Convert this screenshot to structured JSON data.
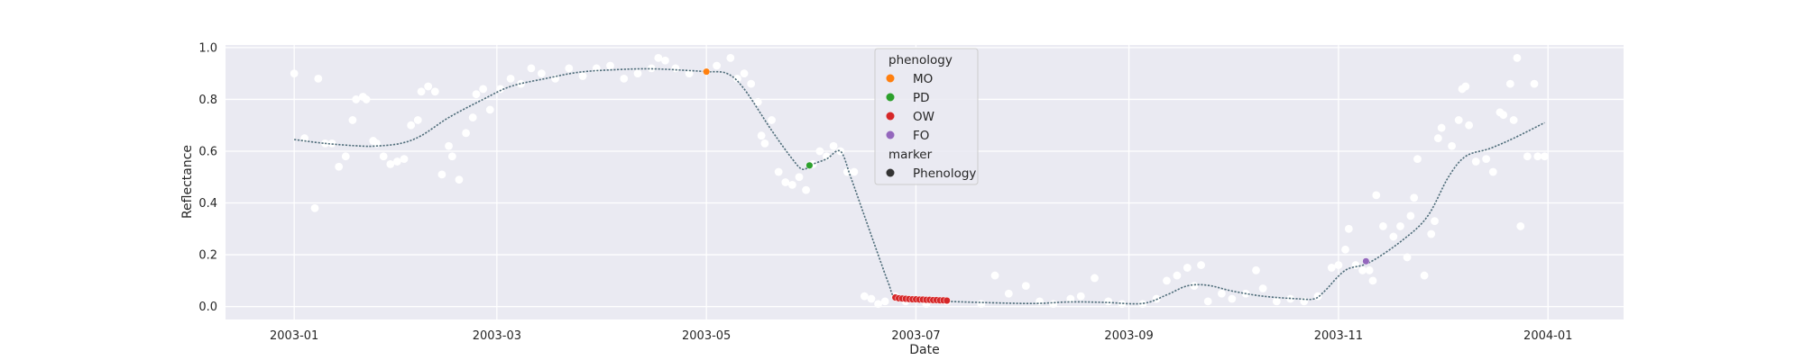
{
  "chart_data": {
    "type": "scatter",
    "title": "",
    "xlabel": "Date",
    "ylabel": "Reflectance",
    "xlim": [
      "2002-12-12",
      "2004-01-23"
    ],
    "ylim": [
      -0.05,
      1.01
    ],
    "x_ticks": [
      "2003-01-01",
      "2003-03-01",
      "2003-05-01",
      "2003-07-01",
      "2003-09-01",
      "2003-11-01",
      "2004-01-01"
    ],
    "x_tick_labels": [
      "2003-01",
      "2003-03",
      "2003-05",
      "2003-07",
      "2003-09",
      "2003-11",
      "2004-01"
    ],
    "y_ticks": [
      0.0,
      0.2,
      0.4,
      0.6,
      0.8,
      1.0
    ],
    "y_tick_labels": [
      "0.0",
      "0.2",
      "0.4",
      "0.6",
      "0.8",
      "1.0"
    ],
    "grid": true,
    "background": "#eaeaf2",
    "legend": {
      "placement": "upper-center",
      "title_hue": "phenology",
      "title_marker": "marker",
      "entries": [
        {
          "label": "MO",
          "color": "#ff7f0e"
        },
        {
          "label": "PD",
          "color": "#2ca02c"
        },
        {
          "label": "OW",
          "color": "#d62728"
        },
        {
          "label": "FO",
          "color": "#9467bd"
        }
      ],
      "marker_entries": [
        {
          "label": "Phenology",
          "color": "#333333"
        }
      ]
    },
    "observations": {
      "color": "#ffffff",
      "points": [
        [
          "2003-01-01",
          0.9
        ],
        [
          "2003-01-04",
          0.65
        ],
        [
          "2003-01-07",
          0.38
        ],
        [
          "2003-01-08",
          0.88
        ],
        [
          "2003-01-10",
          0.63
        ],
        [
          "2003-01-12",
          0.63
        ],
        [
          "2003-01-14",
          0.54
        ],
        [
          "2003-01-16",
          0.58
        ],
        [
          "2003-01-18",
          0.72
        ],
        [
          "2003-01-19",
          0.8
        ],
        [
          "2003-01-21",
          0.81
        ],
        [
          "2003-01-22",
          0.8
        ],
        [
          "2003-01-24",
          0.64
        ],
        [
          "2003-01-25",
          0.63
        ],
        [
          "2003-01-27",
          0.58
        ],
        [
          "2003-01-29",
          0.55
        ],
        [
          "2003-01-31",
          0.56
        ],
        [
          "2003-02-02",
          0.57
        ],
        [
          "2003-02-04",
          0.7
        ],
        [
          "2003-02-06",
          0.72
        ],
        [
          "2003-02-07",
          0.83
        ],
        [
          "2003-02-09",
          0.85
        ],
        [
          "2003-02-11",
          0.83
        ],
        [
          "2003-02-13",
          0.51
        ],
        [
          "2003-02-15",
          0.62
        ],
        [
          "2003-02-16",
          0.58
        ],
        [
          "2003-02-18",
          0.49
        ],
        [
          "2003-02-20",
          0.67
        ],
        [
          "2003-02-22",
          0.73
        ],
        [
          "2003-02-23",
          0.82
        ],
        [
          "2003-02-25",
          0.84
        ],
        [
          "2003-02-27",
          0.76
        ],
        [
          "2003-03-02",
          0.84
        ],
        [
          "2003-03-05",
          0.88
        ],
        [
          "2003-03-08",
          0.86
        ],
        [
          "2003-03-11",
          0.92
        ],
        [
          "2003-03-14",
          0.9
        ],
        [
          "2003-03-18",
          0.88
        ],
        [
          "2003-03-22",
          0.92
        ],
        [
          "2003-03-26",
          0.89
        ],
        [
          "2003-03-30",
          0.92
        ],
        [
          "2003-04-03",
          0.93
        ],
        [
          "2003-04-07",
          0.88
        ],
        [
          "2003-04-11",
          0.9
        ],
        [
          "2003-04-15",
          0.92
        ],
        [
          "2003-04-17",
          0.96
        ],
        [
          "2003-04-19",
          0.95
        ],
        [
          "2003-04-22",
          0.92
        ],
        [
          "2003-04-26",
          0.9
        ],
        [
          "2003-05-04",
          0.93
        ],
        [
          "2003-05-08",
          0.96
        ],
        [
          "2003-05-10",
          0.88
        ],
        [
          "2003-05-12",
          0.9
        ],
        [
          "2003-05-14",
          0.86
        ],
        [
          "2003-05-16",
          0.79
        ],
        [
          "2003-05-17",
          0.66
        ],
        [
          "2003-05-18",
          0.63
        ],
        [
          "2003-05-20",
          0.72
        ],
        [
          "2003-05-22",
          0.52
        ],
        [
          "2003-05-24",
          0.48
        ],
        [
          "2003-05-26",
          0.47
        ],
        [
          "2003-05-28",
          0.5
        ],
        [
          "2003-05-30",
          0.45
        ],
        [
          "2003-06-01",
          0.55
        ],
        [
          "2003-06-03",
          0.6
        ],
        [
          "2003-06-05",
          0.58
        ],
        [
          "2003-06-07",
          0.62
        ],
        [
          "2003-06-09",
          0.6
        ],
        [
          "2003-06-11",
          0.52
        ],
        [
          "2003-06-13",
          0.52
        ],
        [
          "2003-06-16",
          0.04
        ],
        [
          "2003-06-18",
          0.03
        ],
        [
          "2003-06-20",
          0.01
        ],
        [
          "2003-06-22",
          0.02
        ],
        [
          "2003-06-25",
          0.04
        ],
        [
          "2003-06-28",
          0.02
        ],
        [
          "2003-07-04",
          0.01
        ],
        [
          "2003-07-10",
          0.02
        ],
        [
          "2003-07-20",
          0.01
        ],
        [
          "2003-07-24",
          0.12
        ],
        [
          "2003-07-28",
          0.05
        ],
        [
          "2003-08-02",
          0.08
        ],
        [
          "2003-08-06",
          0.02
        ],
        [
          "2003-08-10",
          0.01
        ],
        [
          "2003-08-15",
          0.03
        ],
        [
          "2003-08-18",
          0.04
        ],
        [
          "2003-08-22",
          0.11
        ],
        [
          "2003-08-26",
          0.02
        ],
        [
          "2003-08-30",
          0.01
        ],
        [
          "2003-09-05",
          0.01
        ],
        [
          "2003-09-09",
          0.03
        ],
        [
          "2003-09-12",
          0.1
        ],
        [
          "2003-09-15",
          0.12
        ],
        [
          "2003-09-18",
          0.15
        ],
        [
          "2003-09-20",
          0.08
        ],
        [
          "2003-09-22",
          0.16
        ],
        [
          "2003-09-24",
          0.02
        ],
        [
          "2003-09-28",
          0.05
        ],
        [
          "2003-10-01",
          0.03
        ],
        [
          "2003-10-05",
          0.05
        ],
        [
          "2003-10-08",
          0.14
        ],
        [
          "2003-10-10",
          0.07
        ],
        [
          "2003-10-14",
          0.02
        ],
        [
          "2003-10-18",
          0.03
        ],
        [
          "2003-10-22",
          0.02
        ],
        [
          "2003-10-26",
          0.04
        ],
        [
          "2003-10-30",
          0.15
        ],
        [
          "2003-11-01",
          0.16
        ],
        [
          "2003-11-03",
          0.22
        ],
        [
          "2003-11-04",
          0.3
        ],
        [
          "2003-11-06",
          0.16
        ],
        [
          "2003-11-08",
          0.14
        ],
        [
          "2003-11-10",
          0.14
        ],
        [
          "2003-11-11",
          0.1
        ],
        [
          "2003-11-12",
          0.43
        ],
        [
          "2003-11-14",
          0.31
        ],
        [
          "2003-11-17",
          0.27
        ],
        [
          "2003-11-19",
          0.31
        ],
        [
          "2003-11-21",
          0.19
        ],
        [
          "2003-11-22",
          0.35
        ],
        [
          "2003-11-23",
          0.42
        ],
        [
          "2003-11-24",
          0.57
        ],
        [
          "2003-11-26",
          0.12
        ],
        [
          "2003-11-28",
          0.28
        ],
        [
          "2003-11-29",
          0.33
        ],
        [
          "2003-11-30",
          0.65
        ],
        [
          "2003-12-01",
          0.69
        ],
        [
          "2003-12-04",
          0.62
        ],
        [
          "2003-12-06",
          0.72
        ],
        [
          "2003-12-07",
          0.84
        ],
        [
          "2003-12-08",
          0.85
        ],
        [
          "2003-12-09",
          0.7
        ],
        [
          "2003-12-11",
          0.56
        ],
        [
          "2003-12-14",
          0.57
        ],
        [
          "2003-12-16",
          0.52
        ],
        [
          "2003-12-18",
          0.75
        ],
        [
          "2003-12-19",
          0.74
        ],
        [
          "2003-12-21",
          0.86
        ],
        [
          "2003-12-22",
          0.72
        ],
        [
          "2003-12-23",
          0.96
        ],
        [
          "2003-12-24",
          0.31
        ],
        [
          "2003-12-26",
          0.58
        ],
        [
          "2003-12-28",
          0.86
        ],
        [
          "2003-12-29",
          0.58
        ],
        [
          "2003-12-31",
          0.58
        ]
      ]
    },
    "fitted_curve": {
      "color": "#4f6d7a",
      "points": [
        [
          "2003-01-01",
          0.645
        ],
        [
          "2003-01-10",
          0.63
        ],
        [
          "2003-01-20",
          0.62
        ],
        [
          "2003-01-25",
          0.62
        ],
        [
          "2003-02-01",
          0.63
        ],
        [
          "2003-02-07",
          0.66
        ],
        [
          "2003-02-15",
          0.73
        ],
        [
          "2003-02-25",
          0.8
        ],
        [
          "2003-03-05",
          0.85
        ],
        [
          "2003-03-15",
          0.88
        ],
        [
          "2003-03-25",
          0.905
        ],
        [
          "2003-04-05",
          0.915
        ],
        [
          "2003-04-15",
          0.918
        ],
        [
          "2003-04-25",
          0.912
        ],
        [
          "2003-05-01",
          0.907
        ],
        [
          "2003-05-07",
          0.9
        ],
        [
          "2003-05-12",
          0.84
        ],
        [
          "2003-05-20",
          0.68
        ],
        [
          "2003-05-26",
          0.57
        ],
        [
          "2003-05-29",
          0.53
        ],
        [
          "2003-06-01",
          0.55
        ],
        [
          "2003-06-05",
          0.57
        ],
        [
          "2003-06-09",
          0.6
        ],
        [
          "2003-06-12",
          0.5
        ],
        [
          "2003-06-16",
          0.35
        ],
        [
          "2003-06-20",
          0.2
        ],
        [
          "2003-06-23",
          0.09
        ],
        [
          "2003-06-25",
          0.035
        ],
        [
          "2003-07-01",
          0.026
        ],
        [
          "2003-07-10",
          0.02
        ],
        [
          "2003-07-25",
          0.014
        ],
        [
          "2003-08-05",
          0.012
        ],
        [
          "2003-08-15",
          0.018
        ],
        [
          "2003-08-25",
          0.016
        ],
        [
          "2003-09-05",
          0.012
        ],
        [
          "2003-09-12",
          0.045
        ],
        [
          "2003-09-18",
          0.08
        ],
        [
          "2003-09-24",
          0.082
        ],
        [
          "2003-10-01",
          0.06
        ],
        [
          "2003-10-10",
          0.04
        ],
        [
          "2003-10-20",
          0.03
        ],
        [
          "2003-10-25",
          0.03
        ],
        [
          "2003-10-28",
          0.06
        ],
        [
          "2003-11-03",
          0.14
        ],
        [
          "2003-11-10",
          0.17
        ],
        [
          "2003-11-20",
          0.26
        ],
        [
          "2003-11-27",
          0.35
        ],
        [
          "2003-12-03",
          0.5
        ],
        [
          "2003-12-08",
          0.58
        ],
        [
          "2003-12-15",
          0.61
        ],
        [
          "2003-12-22",
          0.65
        ],
        [
          "2003-12-31",
          0.71
        ]
      ]
    },
    "phenology_points": [
      {
        "label": "MO",
        "color": "#ff7f0e",
        "points": [
          [
            "2003-05-01",
            0.907
          ]
        ]
      },
      {
        "label": "PD",
        "color": "#2ca02c",
        "points": [
          [
            "2003-05-31",
            0.545
          ]
        ]
      },
      {
        "label": "OW",
        "color": "#d62728",
        "points": [
          [
            "2003-06-25",
            0.035
          ],
          [
            "2003-06-26",
            0.032
          ],
          [
            "2003-06-27",
            0.031
          ],
          [
            "2003-06-28",
            0.03
          ],
          [
            "2003-06-29",
            0.029
          ],
          [
            "2003-06-30",
            0.028
          ],
          [
            "2003-07-01",
            0.028
          ],
          [
            "2003-07-02",
            0.027
          ],
          [
            "2003-07-03",
            0.027
          ],
          [
            "2003-07-04",
            0.026
          ],
          [
            "2003-07-05",
            0.026
          ],
          [
            "2003-07-06",
            0.025
          ],
          [
            "2003-07-07",
            0.025
          ],
          [
            "2003-07-08",
            0.024
          ],
          [
            "2003-07-09",
            0.024
          ],
          [
            "2003-07-10",
            0.023
          ]
        ]
      },
      {
        "label": "FO",
        "color": "#9467bd",
        "points": [
          [
            "2003-11-09",
            0.175
          ]
        ]
      }
    ]
  }
}
